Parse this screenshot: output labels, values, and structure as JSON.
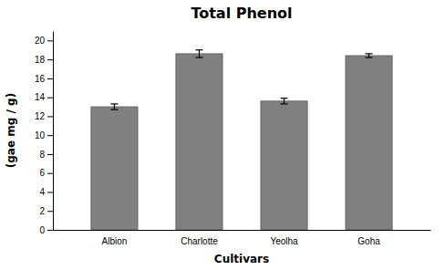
{
  "chart_data": {
    "type": "bar",
    "title": "Total Phenol",
    "xlabel": "Cultivars",
    "ylabel": "(gae mg / g)",
    "categories": [
      "Albion",
      "Charlotte",
      "Yeolha",
      "Goha"
    ],
    "values": [
      13.0,
      18.6,
      13.6,
      18.4
    ],
    "errors": [
      0.3,
      0.4,
      0.3,
      0.2
    ],
    "color": "#808080",
    "ylim": [
      0,
      21
    ],
    "yticks": [
      0,
      2,
      4,
      6,
      8,
      10,
      12,
      14,
      16,
      18,
      20
    ],
    "grid": false
  }
}
